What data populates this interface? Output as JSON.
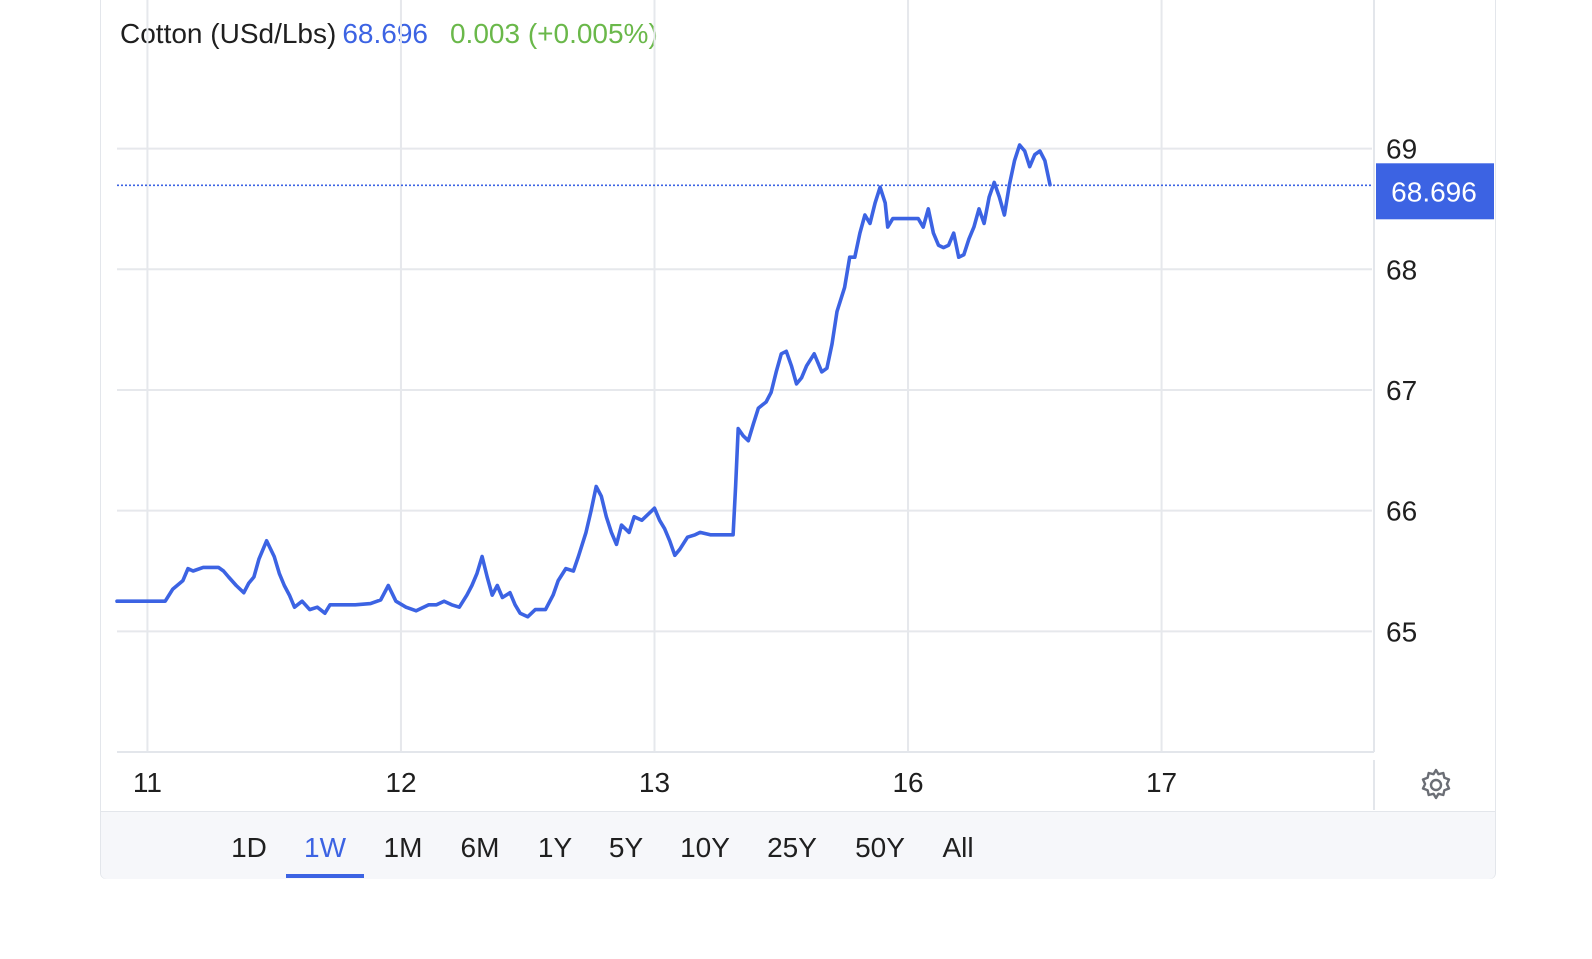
{
  "legend": {
    "name": "Cotton (USd/Lbs)",
    "price": "68.696",
    "change": "0.003 (+0.005%)"
  },
  "colors": {
    "line": "#3c63e3",
    "positive": "#6ab84a",
    "grid": "#e6e8ec",
    "text": "#1f1f1f"
  },
  "toolbar": {
    "tabs": [
      "1D",
      "1W",
      "1M",
      "6M",
      "1Y",
      "5Y",
      "10Y",
      "25Y",
      "50Y",
      "All"
    ],
    "active": "1W"
  },
  "settings_icon": "gear-icon",
  "chart_data": {
    "type": "line",
    "title": "Cotton (USd/Lbs)",
    "last_value": 68.696,
    "last_label": "68.696",
    "ylim": [
      64.0,
      69.9
    ],
    "y_ticks": [
      65,
      66,
      67,
      68,
      69
    ],
    "x_ticks": [
      {
        "label": "11",
        "t": 0.58
      },
      {
        "label": "12",
        "t": 1.58
      },
      {
        "label": "13",
        "t": 2.58
      },
      {
        "label": "16",
        "t": 3.58
      },
      {
        "label": "17",
        "t": 4.58
      }
    ],
    "xlim": [
      0.46,
      5.41
    ],
    "grid": true,
    "series": [
      {
        "values": [
          [
            0.46,
            65.25
          ],
          [
            0.54,
            65.25
          ],
          [
            0.65,
            65.25
          ],
          [
            0.68,
            65.35
          ],
          [
            0.72,
            65.42
          ],
          [
            0.74,
            65.52
          ],
          [
            0.76,
            65.5
          ],
          [
            0.8,
            65.53
          ],
          [
            0.86,
            65.53
          ],
          [
            0.88,
            65.5
          ],
          [
            0.9,
            65.45
          ],
          [
            0.93,
            65.38
          ],
          [
            0.96,
            65.32
          ],
          [
            0.98,
            65.4
          ],
          [
            1.0,
            65.45
          ],
          [
            1.02,
            65.6
          ],
          [
            1.05,
            65.75
          ],
          [
            1.08,
            65.62
          ],
          [
            1.1,
            65.48
          ],
          [
            1.12,
            65.38
          ],
          [
            1.14,
            65.3
          ],
          [
            1.16,
            65.2
          ],
          [
            1.19,
            65.25
          ],
          [
            1.22,
            65.18
          ],
          [
            1.25,
            65.2
          ],
          [
            1.28,
            65.15
          ],
          [
            1.3,
            65.22
          ],
          [
            1.34,
            65.22
          ],
          [
            1.4,
            65.22
          ],
          [
            1.46,
            65.23
          ],
          [
            1.5,
            65.26
          ],
          [
            1.53,
            65.38
          ],
          [
            1.56,
            65.25
          ],
          [
            1.6,
            65.2
          ],
          [
            1.64,
            65.17
          ],
          [
            1.69,
            65.22
          ],
          [
            1.72,
            65.22
          ],
          [
            1.75,
            65.25
          ],
          [
            1.78,
            65.22
          ],
          [
            1.81,
            65.2
          ],
          [
            1.84,
            65.3
          ],
          [
            1.86,
            65.38
          ],
          [
            1.88,
            65.48
          ],
          [
            1.9,
            65.62
          ],
          [
            1.92,
            65.45
          ],
          [
            1.94,
            65.3
          ],
          [
            1.96,
            65.38
          ],
          [
            1.98,
            65.28
          ],
          [
            2.01,
            65.32
          ],
          [
            2.03,
            65.22
          ],
          [
            2.05,
            65.15
          ],
          [
            2.08,
            65.12
          ],
          [
            2.11,
            65.18
          ],
          [
            2.15,
            65.18
          ],
          [
            2.18,
            65.3
          ],
          [
            2.2,
            65.42
          ],
          [
            2.23,
            65.52
          ],
          [
            2.26,
            65.5
          ],
          [
            2.28,
            65.62
          ],
          [
            2.31,
            65.82
          ],
          [
            2.33,
            66.0
          ],
          [
            2.35,
            66.2
          ],
          [
            2.37,
            66.12
          ],
          [
            2.39,
            65.95
          ],
          [
            2.41,
            65.82
          ],
          [
            2.43,
            65.72
          ],
          [
            2.45,
            65.88
          ],
          [
            2.48,
            65.82
          ],
          [
            2.5,
            65.95
          ],
          [
            2.53,
            65.92
          ],
          [
            2.56,
            65.98
          ],
          [
            2.58,
            66.02
          ],
          [
            2.6,
            65.92
          ],
          [
            2.62,
            65.85
          ],
          [
            2.64,
            65.75
          ],
          [
            2.66,
            65.63
          ],
          [
            2.68,
            65.68
          ],
          [
            2.71,
            65.78
          ],
          [
            2.74,
            65.8
          ],
          [
            2.76,
            65.82
          ],
          [
            2.8,
            65.8
          ],
          [
            2.85,
            65.8
          ],
          [
            2.89,
            65.8
          ],
          [
            2.9,
            66.2
          ],
          [
            2.91,
            66.68
          ],
          [
            2.93,
            66.62
          ],
          [
            2.95,
            66.58
          ],
          [
            2.97,
            66.72
          ],
          [
            2.99,
            66.85
          ],
          [
            3.02,
            66.9
          ],
          [
            3.04,
            66.98
          ],
          [
            3.06,
            67.15
          ],
          [
            3.08,
            67.3
          ],
          [
            3.1,
            67.32
          ],
          [
            3.12,
            67.2
          ],
          [
            3.14,
            67.05
          ],
          [
            3.16,
            67.1
          ],
          [
            3.18,
            67.2
          ],
          [
            3.21,
            67.3
          ],
          [
            3.24,
            67.15
          ],
          [
            3.26,
            67.18
          ],
          [
            3.28,
            67.38
          ],
          [
            3.3,
            67.65
          ],
          [
            3.33,
            67.85
          ],
          [
            3.35,
            68.1
          ],
          [
            3.37,
            68.1
          ],
          [
            3.39,
            68.3
          ],
          [
            3.41,
            68.45
          ],
          [
            3.43,
            68.38
          ],
          [
            3.45,
            68.55
          ],
          [
            3.47,
            68.68
          ],
          [
            3.49,
            68.55
          ],
          [
            3.5,
            68.35
          ],
          [
            3.52,
            68.42
          ],
          [
            3.57,
            68.42
          ],
          [
            3.62,
            68.42
          ],
          [
            3.64,
            68.35
          ],
          [
            3.66,
            68.5
          ],
          [
            3.68,
            68.3
          ],
          [
            3.7,
            68.2
          ],
          [
            3.72,
            68.18
          ],
          [
            3.74,
            68.2
          ],
          [
            3.76,
            68.3
          ],
          [
            3.78,
            68.1
          ],
          [
            3.8,
            68.12
          ],
          [
            3.82,
            68.25
          ],
          [
            3.84,
            68.35
          ],
          [
            3.86,
            68.5
          ],
          [
            3.88,
            68.38
          ],
          [
            3.9,
            68.6
          ],
          [
            3.92,
            68.72
          ],
          [
            3.94,
            68.6
          ],
          [
            3.96,
            68.45
          ],
          [
            3.98,
            68.7
          ],
          [
            4.0,
            68.9
          ],
          [
            4.02,
            69.03
          ],
          [
            4.04,
            68.98
          ],
          [
            4.06,
            68.85
          ],
          [
            4.08,
            68.95
          ],
          [
            4.1,
            68.98
          ],
          [
            4.12,
            68.9
          ],
          [
            4.14,
            68.7
          ]
        ]
      }
    ]
  }
}
